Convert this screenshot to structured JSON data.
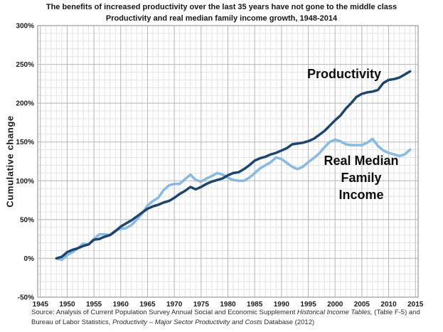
{
  "header": {
    "title": "The benefits of increased productivity over the last 35 years have not gone to the middle class",
    "subtitle": "Productivity and real median family income growth, 1948-2014"
  },
  "chart_data": {
    "type": "line",
    "title": "The benefits of increased productivity over the last 35 years have not gone to the middle class",
    "subtitle": "Productivity and real median family income growth, 1948-2014",
    "ylabel": "Cumulative change",
    "xlabel": "",
    "xlim": [
      1944.5,
      2015.5
    ],
    "ylim": [
      -50,
      300
    ],
    "grid": {
      "minor_x_step": 1,
      "major_x_step": 5,
      "minor_y_step": 10,
      "major_y_step": 50,
      "minor_color": "#e4e4e4",
      "major_color": "#b5b5b5",
      "border_color": "#9a9a9a"
    },
    "x_tick_years": [
      1945,
      1950,
      1955,
      1960,
      1965,
      1970,
      1975,
      1980,
      1985,
      1990,
      1995,
      2000,
      2005,
      2010,
      2015
    ],
    "y_tick_values": [
      300,
      250,
      200,
      150,
      100,
      50,
      0,
      -50
    ],
    "y_tick_labels": [
      "300%",
      "250%",
      "200%",
      "150%",
      "100%",
      "50%",
      "0%",
      "-50%"
    ],
    "x": [
      1948,
      1949,
      1950,
      1951,
      1952,
      1953,
      1954,
      1955,
      1956,
      1957,
      1958,
      1959,
      1960,
      1961,
      1962,
      1963,
      1964,
      1965,
      1966,
      1967,
      1968,
      1969,
      1970,
      1971,
      1972,
      1973,
      1974,
      1975,
      1976,
      1977,
      1978,
      1979,
      1980,
      1981,
      1982,
      1983,
      1984,
      1985,
      1986,
      1987,
      1988,
      1989,
      1990,
      1991,
      1992,
      1993,
      1994,
      1995,
      1996,
      1997,
      1998,
      1999,
      2000,
      2001,
      2002,
      2003,
      2004,
      2005,
      2006,
      2007,
      2008,
      2009,
      2010,
      2011,
      2012,
      2013,
      2014
    ],
    "series": [
      {
        "name": "Productivity",
        "color": "#1c4670",
        "stroke_width": 3.5,
        "values": [
          0,
          2,
          8,
          11,
          13,
          16,
          18,
          24,
          25,
          28,
          30,
          35,
          41,
          45,
          49,
          54,
          59,
          64,
          67,
          69,
          72,
          74,
          78,
          83,
          87,
          92,
          89,
          92,
          96,
          99,
          101,
          103,
          107,
          110,
          111,
          115,
          120,
          126,
          129,
          131,
          134,
          136,
          139,
          142,
          147,
          148,
          149,
          151,
          154,
          159,
          164,
          171,
          178,
          184,
          193,
          200,
          208,
          212,
          214,
          215,
          217,
          226,
          230,
          231,
          233,
          237,
          241
        ]
      },
      {
        "name": "Real Median Family Income",
        "color": "#85b9e6",
        "stroke_width": 3.5,
        "values": [
          0,
          -2,
          4,
          8,
          13,
          19,
          18,
          25,
          31,
          31,
          30,
          36,
          38,
          39,
          43,
          50,
          58,
          68,
          74,
          78,
          88,
          94,
          96,
          96,
          102,
          108,
          101,
          99,
          103,
          106,
          110,
          108,
          104,
          101,
          100,
          100,
          104,
          110,
          116,
          120,
          124,
          130,
          128,
          123,
          118,
          115,
          118,
          124,
          129,
          135,
          143,
          150,
          153,
          151,
          147,
          146,
          146,
          146,
          149,
          154,
          145,
          139,
          136,
          134,
          132,
          134,
          140
        ]
      }
    ],
    "annotations": [
      {
        "id": "productivity-label",
        "text": "Productivity",
        "x": 484,
        "y": 104
      },
      {
        "id": "income-label",
        "text": "Real Median\nFamily Income",
        "x": 508,
        "y": 250
      }
    ],
    "legend": "none (direct line labels)"
  },
  "source": {
    "line1_normal": "Source:  Analysis of Current Population Survey Annual Social and Economic Supplement ",
    "line1_italic": "Historical Income Tables,",
    "line1_tail": " (Table F-5) and",
    "line2_normal": "Bureau of Labor Statistics, ",
    "line2_italic": "Productivity – Major Sector Productivity and Costs ",
    "line2_tail": "Database (2012)"
  }
}
